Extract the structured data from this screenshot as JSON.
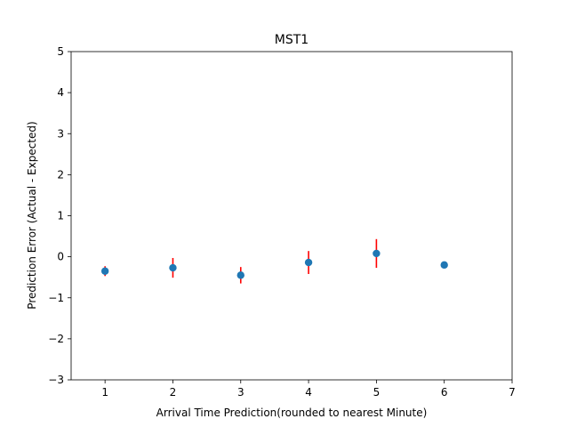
{
  "chart_data": {
    "type": "scatter",
    "title": "MST1",
    "xlabel": "Arrival Time Prediction(rounded to nearest Minute)",
    "ylabel": "Prediction Error (Actual - Expected)",
    "xlim": [
      0.5,
      7
    ],
    "ylim": [
      -3,
      5
    ],
    "xticks": [
      1,
      2,
      3,
      4,
      5,
      6,
      7
    ],
    "yticks": [
      -3,
      -2,
      -1,
      0,
      1,
      2,
      3,
      4,
      5
    ],
    "ytick_labels": [
      "−3",
      "−2",
      "−1",
      "0",
      "1",
      "2",
      "3",
      "4",
      "5"
    ],
    "grid": false,
    "series": [
      {
        "x": [
          1,
          2,
          3,
          4,
          5,
          6
        ],
        "y": [
          -0.35,
          -0.27,
          -0.45,
          -0.14,
          0.08,
          -0.2
        ],
        "yerr": [
          0.12,
          0.24,
          0.2,
          0.28,
          0.35,
          0.0
        ],
        "marker_color": "#1f77b4",
        "error_color": "#ff0000"
      }
    ]
  }
}
